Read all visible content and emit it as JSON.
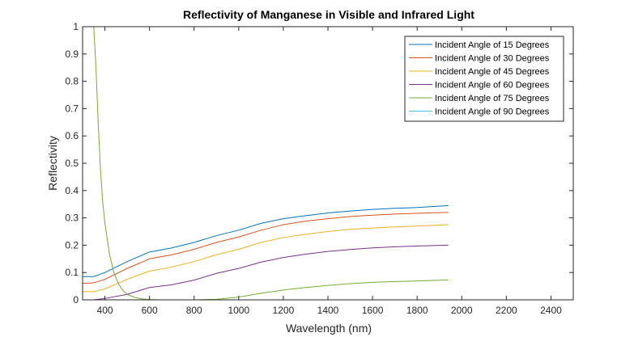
{
  "chart_data": {
    "type": "line",
    "title": "Reflectivity of Manganese in Visible and Infrared Light",
    "xlabel": "Wavelength (nm)",
    "ylabel": "Reflectivity",
    "xlim": [
      300,
      2500
    ],
    "ylim": [
      0,
      1
    ],
    "xticks": [
      400,
      600,
      800,
      1000,
      1200,
      1400,
      1600,
      1800,
      2000,
      2200,
      2400
    ],
    "yticks": [
      0,
      0.1,
      0.2,
      0.3,
      0.4,
      0.5,
      0.6,
      0.7,
      0.8,
      0.9,
      1
    ],
    "grid": false,
    "legend_position": "top-right",
    "series": [
      {
        "name": "Incident Angle of 15 Degrees",
        "color": "#0072BD",
        "x": [
          300,
          350,
          400,
          500,
          600,
          700,
          800,
          900,
          1000,
          1100,
          1200,
          1300,
          1400,
          1500,
          1600,
          1700,
          1800,
          1940
        ],
        "y": [
          0.085,
          0.085,
          0.1,
          0.14,
          0.175,
          0.19,
          0.21,
          0.235,
          0.255,
          0.28,
          0.297,
          0.308,
          0.318,
          0.325,
          0.331,
          0.335,
          0.338,
          0.345
        ]
      },
      {
        "name": "Incident Angle of 30 Degrees",
        "color": "#D95319",
        "x": [
          300,
          350,
          400,
          500,
          600,
          700,
          800,
          900,
          1000,
          1100,
          1200,
          1300,
          1400,
          1500,
          1600,
          1700,
          1800,
          1940
        ],
        "y": [
          0.06,
          0.062,
          0.075,
          0.115,
          0.15,
          0.165,
          0.185,
          0.21,
          0.23,
          0.255,
          0.275,
          0.288,
          0.297,
          0.305,
          0.31,
          0.314,
          0.317,
          0.32
        ]
      },
      {
        "name": "Incident Angle of 45 Degrees",
        "color": "#EDB120",
        "x": [
          300,
          350,
          400,
          500,
          600,
          700,
          800,
          900,
          1000,
          1100,
          1200,
          1300,
          1400,
          1500,
          1600,
          1700,
          1800,
          1940
        ],
        "y": [
          0.03,
          0.03,
          0.04,
          0.075,
          0.105,
          0.12,
          0.14,
          0.165,
          0.185,
          0.21,
          0.228,
          0.24,
          0.25,
          0.258,
          0.263,
          0.267,
          0.27,
          0.275
        ]
      },
      {
        "name": "Incident Angle of 60 Degrees",
        "color": "#7E2F8E",
        "x": [
          300,
          350,
          400,
          500,
          600,
          700,
          800,
          900,
          1000,
          1100,
          1200,
          1300,
          1400,
          1500,
          1600,
          1700,
          1800,
          1940
        ],
        "y": [
          0.0,
          0.0,
          0.005,
          0.02,
          0.045,
          0.055,
          0.072,
          0.097,
          0.115,
          0.138,
          0.155,
          0.167,
          0.177,
          0.184,
          0.19,
          0.194,
          0.197,
          0.2
        ]
      },
      {
        "name": "Incident Angle of 75 Degrees",
        "color": "#77AC30",
        "x": [
          350,
          360,
          370,
          380,
          390,
          400,
          420,
          440,
          460,
          480,
          500,
          530,
          560,
          600,
          650,
          700,
          800,
          900,
          1000,
          1100,
          1200,
          1300,
          1400,
          1500,
          1600,
          1700,
          1800,
          1940
        ],
        "y": [
          1.0,
          0.85,
          0.65,
          0.48,
          0.36,
          0.28,
          0.17,
          0.1,
          0.06,
          0.035,
          0.02,
          0.01,
          0.004,
          0.001,
          0.0,
          0.0,
          0.0,
          0.002,
          0.01,
          0.024,
          0.036,
          0.045,
          0.053,
          0.059,
          0.064,
          0.067,
          0.069,
          0.073
        ]
      },
      {
        "name": "Incident Angle of 90 Degrees",
        "color": "#4DBEEE",
        "x": [
          300,
          1940
        ],
        "y": [
          1.0,
          1.0
        ]
      }
    ]
  }
}
